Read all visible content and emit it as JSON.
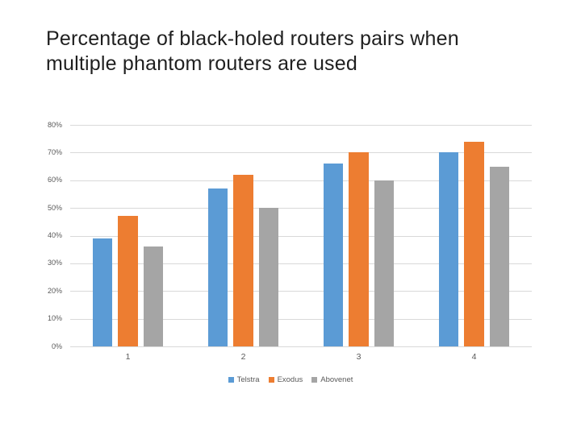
{
  "slide": {
    "title": "Percentage of black-holed routers pairs when\nmultiple phantom routers are used"
  },
  "chart_data": {
    "type": "bar",
    "title": "Percentage of black-holed routers pairs when multiple phantom routers are used",
    "categories": [
      "1",
      "2",
      "3",
      "4"
    ],
    "series": [
      {
        "name": "Telstra",
        "color": "#5B9BD5",
        "values": [
          39,
          57,
          66,
          70
        ]
      },
      {
        "name": "Exodus",
        "color": "#ED7D31",
        "values": [
          47,
          62,
          70,
          74
        ]
      },
      {
        "name": "Abovenet",
        "color": "#A5A5A5",
        "values": [
          36,
          50,
          60,
          65
        ]
      }
    ],
    "value_unit": "%",
    "ylim": [
      0,
      80
    ],
    "y_ticks": [
      0,
      10,
      20,
      30,
      40,
      50,
      60,
      70,
      80
    ],
    "y_tick_labels": [
      "0%",
      "10%",
      "20%",
      "30%",
      "40%",
      "50%",
      "60%",
      "70%",
      "80%"
    ],
    "xlabel": "",
    "ylabel": "",
    "grid": true,
    "legend_position": "bottom"
  },
  "colors": {
    "background": "#ffffff",
    "gridline": "#d9d9d9",
    "axis_text": "#595959",
    "title_text": "#1f1f1f"
  }
}
